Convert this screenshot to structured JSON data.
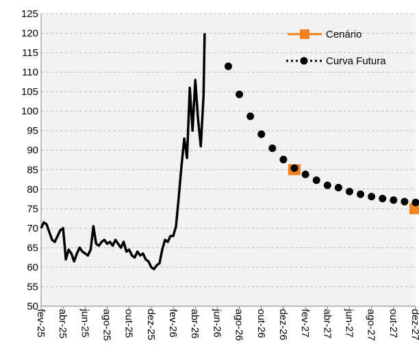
{
  "chart_data": {
    "type": "line",
    "xlim": [
      0,
      34
    ],
    "xticks": [
      {
        "value": 0,
        "label": "fev-25"
      },
      {
        "value": 2,
        "label": "abr-25"
      },
      {
        "value": 4,
        "label": "jun-25"
      },
      {
        "value": 6,
        "label": "ago-25"
      },
      {
        "value": 8,
        "label": "out-25"
      },
      {
        "value": 10,
        "label": "dez-25"
      },
      {
        "value": 12,
        "label": "fev-26"
      },
      {
        "value": 14,
        "label": "abr-26"
      },
      {
        "value": 16,
        "label": "jun-26"
      },
      {
        "value": 18,
        "label": "ago-26"
      },
      {
        "value": 20,
        "label": "out-26"
      },
      {
        "value": 22,
        "label": "dez-26"
      },
      {
        "value": 24,
        "label": "fev-27"
      },
      {
        "value": 26,
        "label": "abr-27"
      },
      {
        "value": 28,
        "label": "jun-27"
      },
      {
        "value": 30,
        "label": "ago-27"
      },
      {
        "value": 32,
        "label": "out-27"
      },
      {
        "value": 34,
        "label": "dez-27"
      }
    ],
    "ylim": [
      50,
      125
    ],
    "yticks": [
      50,
      55,
      60,
      65,
      70,
      75,
      80,
      85,
      90,
      95,
      100,
      105,
      110,
      115,
      120,
      125
    ],
    "grid": true,
    "legend": "upper right",
    "series": [
      {
        "color": "#000000",
        "style": "line",
        "x": [
          0,
          0.25,
          0.5,
          0.75,
          1,
          1.25,
          1.5,
          1.75,
          2,
          2.25,
          2.5,
          2.75,
          3,
          3.25,
          3.5,
          3.75,
          4,
          4.25,
          4.5,
          4.75,
          5,
          5.25,
          5.5,
          5.75,
          6,
          6.25,
          6.5,
          6.75,
          7,
          7.25,
          7.5,
          7.75,
          8,
          8.25,
          8.5,
          8.75,
          9,
          9.25,
          9.5,
          9.75,
          10,
          10.25,
          10.5,
          10.75,
          11,
          11.25,
          11.5,
          11.75,
          12,
          12.25,
          12.5,
          12.75,
          13,
          13.25,
          13.5,
          13.75,
          14,
          14.25,
          14.5,
          14.75,
          14.85
        ],
        "values": [
          70,
          71.5,
          71,
          69,
          67,
          66.5,
          68,
          69.5,
          70,
          62,
          64.5,
          63.5,
          61.5,
          63.5,
          65,
          64,
          63.5,
          63,
          64.5,
          70.5,
          66,
          65.5,
          66.5,
          67,
          66,
          66.5,
          65.5,
          67,
          66,
          65,
          66.5,
          64,
          64.5,
          63,
          62.5,
          64,
          63,
          63.5,
          62,
          61.5,
          60,
          59.5,
          60.5,
          61,
          64.5,
          67,
          66.5,
          68,
          68,
          70.5,
          78,
          86,
          93,
          88,
          106,
          95,
          108,
          98,
          91,
          104,
          120
        ]
      },
      {
        "name": "Cenário",
        "color": "#f5821f",
        "style": "square",
        "x": [
          23,
          34
        ],
        "values": [
          85,
          75
        ]
      },
      {
        "name": "Curva Futura",
        "color": "#000000",
        "style": "dot",
        "x": [
          17,
          18,
          19,
          20,
          21,
          22,
          23,
          24,
          25,
          26,
          27,
          28,
          29,
          30,
          31,
          32,
          33,
          34
        ],
        "values": [
          111.5,
          104.3,
          98.7,
          94.1,
          90.5,
          87.6,
          85.4,
          83.8,
          82.3,
          81,
          80.4,
          79.4,
          78.7,
          78.1,
          77.6,
          77.2,
          76.8,
          76.6
        ]
      }
    ]
  }
}
